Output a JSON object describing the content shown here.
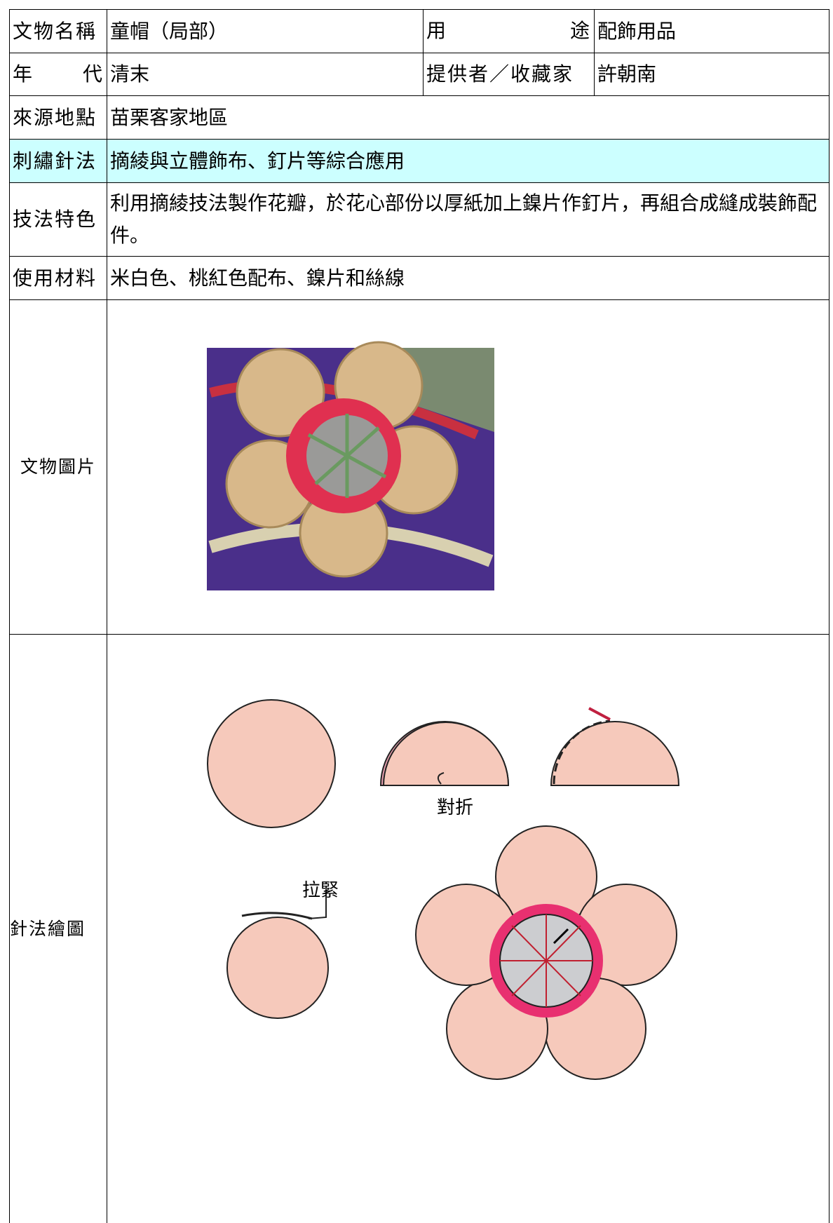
{
  "table": {
    "rows": [
      [
        "文物名稱",
        "童帽（局部）",
        "用途",
        "配飾用品"
      ],
      [
        "年代",
        "清末",
        "提供者／收藏家",
        "許朝南"
      ],
      [
        "來源地點",
        "苗栗客家地區"
      ],
      [
        "刺繡針法",
        "摘綾與立體飾布、釘片等綜合應用"
      ],
      [
        "技法特色",
        "利用摘綾技法製作花瓣，於花心部份以厚紙加上鎳片作釘片，再組合成縫成裝飾配件。"
      ],
      [
        "使用材料",
        "米白色、桃紅色配布、鎳片和絲線"
      ],
      [
        "文物圖片"
      ],
      [
        "針法繪圖"
      ]
    ]
  },
  "diagram": {
    "labels": [
      "對折",
      "拉緊"
    ]
  }
}
